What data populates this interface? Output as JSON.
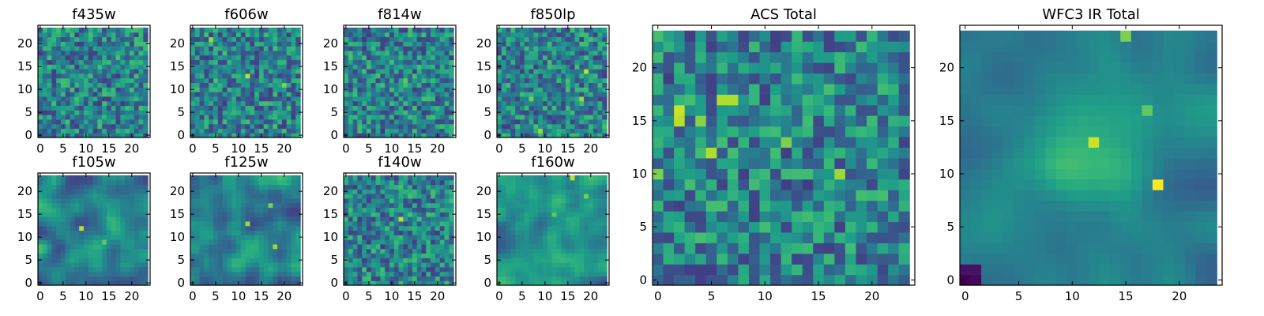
{
  "colormap": "viridis",
  "chart_data": [
    {
      "type": "heatmap",
      "title": "f435w",
      "x_ticks": [
        0,
        5,
        10,
        15,
        20
      ],
      "y_ticks": [
        0,
        5,
        10,
        15,
        20
      ],
      "grid_size": 24,
      "seed": 11,
      "style": "noise",
      "hotspots": []
    },
    {
      "type": "heatmap",
      "title": "f606w",
      "x_ticks": [
        0,
        5,
        10,
        15,
        20
      ],
      "y_ticks": [
        0,
        5,
        10,
        15,
        20
      ],
      "grid_size": 24,
      "seed": 23,
      "style": "noise",
      "hotspots": [
        [
          12,
          13,
          0.9
        ],
        [
          4,
          21,
          0.85
        ],
        [
          20,
          11,
          0.8
        ]
      ]
    },
    {
      "type": "heatmap",
      "title": "f814w",
      "x_ticks": [
        0,
        5,
        10,
        15,
        20
      ],
      "y_ticks": [
        0,
        5,
        10,
        15,
        20
      ],
      "grid_size": 24,
      "seed": 37,
      "style": "noise",
      "hotspots": [
        [
          13,
          12,
          0.75
        ],
        [
          1,
          17,
          0.7
        ]
      ]
    },
    {
      "type": "heatmap",
      "title": "f850lp",
      "x_ticks": [
        0,
        5,
        10,
        15,
        20
      ],
      "y_ticks": [
        0,
        5,
        10,
        15,
        20
      ],
      "grid_size": 24,
      "seed": 41,
      "style": "noise",
      "hotspots": [
        [
          19,
          14,
          0.9
        ],
        [
          18,
          8,
          0.85
        ],
        [
          9,
          1,
          0.85
        ],
        [
          7,
          8,
          0.8
        ]
      ]
    },
    {
      "type": "heatmap",
      "title": "f105w",
      "x_ticks": [
        0,
        5,
        10,
        15,
        20
      ],
      "y_ticks": [
        0,
        5,
        10,
        15,
        20
      ],
      "grid_size": 24,
      "seed": 53,
      "style": "smooth",
      "hotspots": [
        [
          9,
          12,
          0.9
        ],
        [
          14,
          9,
          0.75
        ]
      ]
    },
    {
      "type": "heatmap",
      "title": "f125w",
      "x_ticks": [
        0,
        5,
        10,
        15,
        20
      ],
      "y_ticks": [
        0,
        5,
        10,
        15,
        20
      ],
      "grid_size": 24,
      "seed": 67,
      "style": "smooth",
      "hotspots": [
        [
          12,
          13,
          0.85
        ],
        [
          18,
          8,
          0.85
        ],
        [
          17,
          17,
          0.8
        ]
      ]
    },
    {
      "type": "heatmap",
      "title": "f140w",
      "x_ticks": [
        0,
        5,
        10,
        15,
        20
      ],
      "y_ticks": [
        0,
        5,
        10,
        15,
        20
      ],
      "grid_size": 24,
      "seed": 71,
      "style": "noise",
      "hotspots": [
        [
          12,
          14,
          0.9
        ]
      ]
    },
    {
      "type": "heatmap",
      "title": "f160w",
      "x_ticks": [
        0,
        5,
        10,
        15,
        20
      ],
      "y_ticks": [
        0,
        5,
        10,
        15,
        20
      ],
      "grid_size": 24,
      "seed": 83,
      "style": "smooth",
      "hotspots": [
        [
          16,
          23,
          0.9
        ],
        [
          19,
          19,
          0.8
        ],
        [
          12,
          15,
          0.75
        ]
      ]
    },
    {
      "type": "heatmap",
      "title": "ACS Total",
      "x_ticks": [
        0,
        5,
        10,
        15,
        20
      ],
      "y_ticks": [
        0,
        5,
        10,
        15,
        20
      ],
      "grid_size": 24,
      "seed": 97,
      "style": "noise",
      "hotspots": [
        [
          2,
          16,
          0.92
        ],
        [
          2,
          15,
          0.9
        ],
        [
          6,
          17,
          0.88
        ],
        [
          7,
          17,
          0.88
        ],
        [
          5,
          12,
          0.88
        ],
        [
          17,
          10,
          0.85
        ],
        [
          12,
          13,
          0.8
        ],
        [
          4,
          15,
          0.82
        ],
        [
          0,
          10,
          0.8
        ]
      ]
    },
    {
      "type": "heatmap",
      "title": "WFC3 IR Total",
      "x_ticks": [
        0,
        5,
        10,
        15,
        20
      ],
      "y_ticks": [
        0,
        5,
        10,
        15,
        20
      ],
      "grid_size": 24,
      "seed": 109,
      "style": "blob",
      "hotspots": [
        [
          12,
          13,
          0.92
        ],
        [
          18,
          9,
          1.0
        ],
        [
          15,
          23,
          0.8
        ],
        [
          17,
          16,
          0.75
        ]
      ]
    }
  ]
}
